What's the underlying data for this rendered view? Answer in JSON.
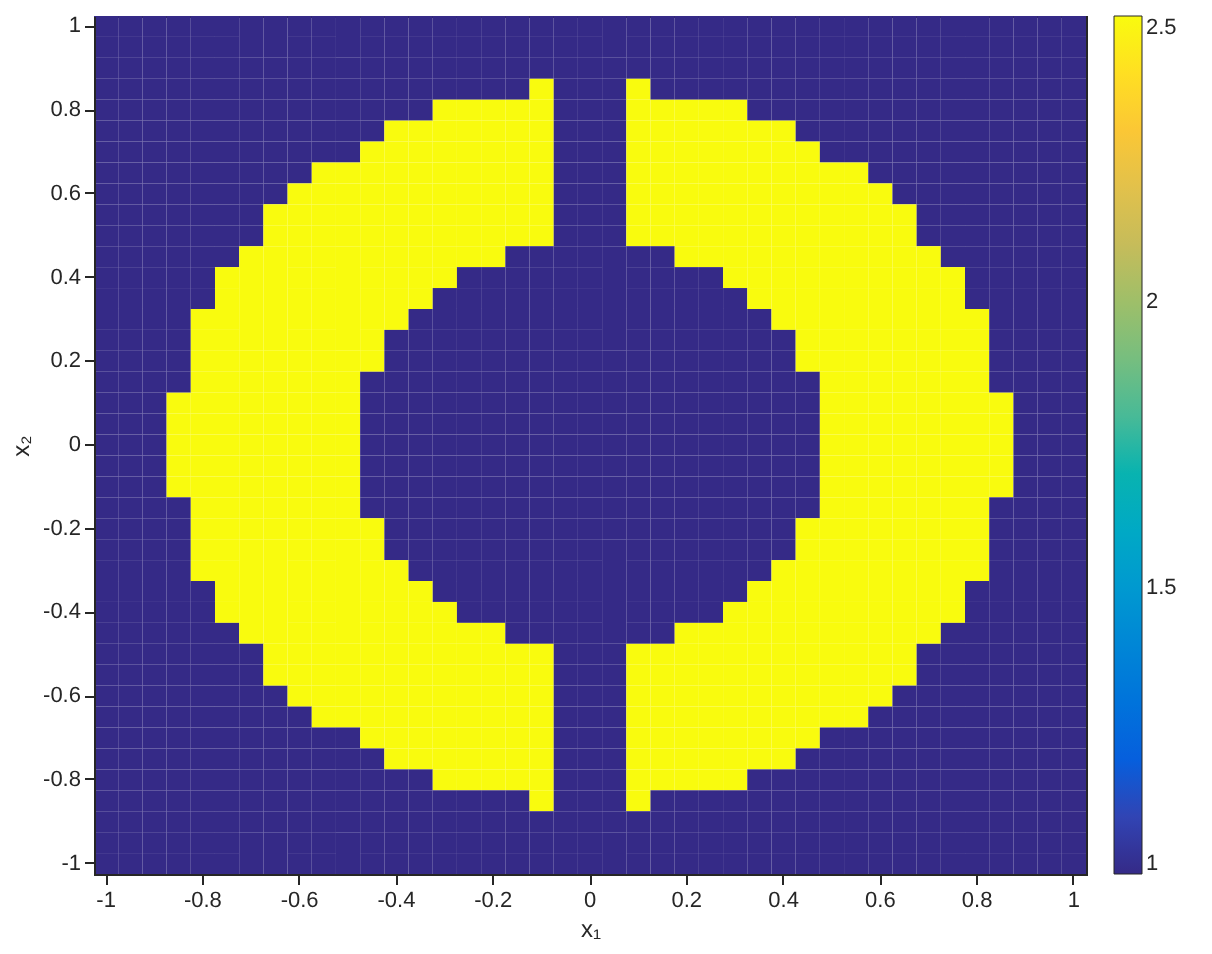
{
  "chart_data": {
    "type": "heatmap",
    "xlabel": "x₁",
    "ylabel": "x₂",
    "categories": [
      "-1",
      null,
      null,
      null,
      "-0.8",
      null,
      null,
      null,
      "-0.6",
      null,
      null,
      null,
      "-0.4",
      null,
      null,
      null,
      "-0.2",
      null,
      null,
      null,
      "0",
      null,
      null,
      null,
      "0.2",
      null,
      null,
      null,
      "0.4",
      null,
      null,
      null,
      "0.6",
      null,
      null,
      null,
      "0.8",
      null,
      null,
      null,
      "1"
    ],
    "y_categories": [
      "1",
      null,
      null,
      null,
      "0.8",
      null,
      null,
      null,
      "0.6",
      null,
      null,
      null,
      "0.4",
      null,
      null,
      null,
      "0.2",
      null,
      null,
      null,
      "0",
      null,
      null,
      null,
      "-0.2",
      null,
      null,
      null,
      "-0.4",
      null,
      null,
      null,
      "-0.6",
      null,
      null,
      null,
      "-0.8",
      null,
      null,
      null,
      "-1"
    ],
    "cells": [
      [
        1,
        1,
        1,
        1,
        1,
        1,
        1,
        1,
        1,
        1,
        1,
        1,
        1,
        1,
        1,
        1,
        1,
        1,
        1,
        1,
        1,
        1,
        1,
        1,
        1,
        1,
        1,
        1,
        1,
        1,
        1,
        1,
        1,
        1,
        1,
        1,
        1,
        1,
        1,
        1,
        1
      ],
      [
        1,
        1,
        1,
        1,
        1,
        1,
        1,
        1,
        1,
        1,
        1,
        1,
        1,
        1,
        1,
        1,
        1,
        1,
        1,
        1,
        1,
        1,
        1,
        1,
        1,
        1,
        1,
        1,
        1,
        1,
        1,
        1,
        1,
        1,
        1,
        1,
        1,
        1,
        1,
        1,
        1
      ],
      [
        1,
        1,
        1,
        1,
        1,
        1,
        1,
        1,
        1,
        1,
        1,
        1,
        1,
        1,
        1,
        1,
        1,
        1,
        1,
        1,
        1,
        1,
        1,
        1,
        1,
        1,
        1,
        1,
        1,
        1,
        1,
        1,
        1,
        1,
        1,
        1,
        1,
        1,
        1,
        1,
        1
      ],
      [
        1,
        1,
        1,
        1,
        1,
        1,
        1,
        1,
        1,
        1,
        1,
        1,
        1,
        1,
        1,
        1,
        1,
        1,
        2.5,
        1,
        1,
        1,
        2.5,
        1,
        1,
        1,
        1,
        1,
        1,
        1,
        1,
        1,
        1,
        1,
        1,
        1,
        1,
        1,
        1,
        1,
        1
      ],
      [
        1,
        1,
        1,
        1,
        1,
        1,
        1,
        1,
        1,
        1,
        1,
        1,
        1,
        1,
        2.5,
        2.5,
        2.5,
        2.5,
        2.5,
        1,
        1,
        1,
        2.5,
        2.5,
        2.5,
        2.5,
        2.5,
        1,
        1,
        1,
        1,
        1,
        1,
        1,
        1,
        1,
        1,
        1,
        1,
        1,
        1
      ],
      [
        1,
        1,
        1,
        1,
        1,
        1,
        1,
        1,
        1,
        1,
        1,
        1,
        2.5,
        2.5,
        2.5,
        2.5,
        2.5,
        2.5,
        2.5,
        1,
        1,
        1,
        2.5,
        2.5,
        2.5,
        2.5,
        2.5,
        2.5,
        2.5,
        1,
        1,
        1,
        1,
        1,
        1,
        1,
        1,
        1,
        1,
        1,
        1
      ],
      [
        1,
        1,
        1,
        1,
        1,
        1,
        1,
        1,
        1,
        1,
        1,
        2.5,
        2.5,
        2.5,
        2.5,
        2.5,
        2.5,
        2.5,
        2.5,
        1,
        1,
        1,
        2.5,
        2.5,
        2.5,
        2.5,
        2.5,
        2.5,
        2.5,
        2.5,
        1,
        1,
        1,
        1,
        1,
        1,
        1,
        1,
        1,
        1,
        1
      ],
      [
        1,
        1,
        1,
        1,
        1,
        1,
        1,
        1,
        1,
        2.5,
        2.5,
        2.5,
        2.5,
        2.5,
        2.5,
        2.5,
        2.5,
        2.5,
        2.5,
        1,
        1,
        1,
        2.5,
        2.5,
        2.5,
        2.5,
        2.5,
        2.5,
        2.5,
        2.5,
        2.5,
        2.5,
        1,
        1,
        1,
        1,
        1,
        1,
        1,
        1,
        1
      ],
      [
        1,
        1,
        1,
        1,
        1,
        1,
        1,
        1,
        2.5,
        2.5,
        2.5,
        2.5,
        2.5,
        2.5,
        2.5,
        2.5,
        2.5,
        2.5,
        2.5,
        1,
        1,
        1,
        2.5,
        2.5,
        2.5,
        2.5,
        2.5,
        2.5,
        2.5,
        2.5,
        2.5,
        2.5,
        2.5,
        1,
        1,
        1,
        1,
        1,
        1,
        1,
        1
      ],
      [
        1,
        1,
        1,
        1,
        1,
        1,
        1,
        2.5,
        2.5,
        2.5,
        2.5,
        2.5,
        2.5,
        2.5,
        2.5,
        2.5,
        2.5,
        2.5,
        2.5,
        1,
        1,
        1,
        2.5,
        2.5,
        2.5,
        2.5,
        2.5,
        2.5,
        2.5,
        2.5,
        2.5,
        2.5,
        2.5,
        2.5,
        1,
        1,
        1,
        1,
        1,
        1,
        1
      ],
      [
        1,
        1,
        1,
        1,
        1,
        1,
        1,
        2.5,
        2.5,
        2.5,
        2.5,
        2.5,
        2.5,
        2.5,
        2.5,
        2.5,
        2.5,
        2.5,
        2.5,
        1,
        1,
        1,
        2.5,
        2.5,
        2.5,
        2.5,
        2.5,
        2.5,
        2.5,
        2.5,
        2.5,
        2.5,
        2.5,
        2.5,
        1,
        1,
        1,
        1,
        1,
        1,
        1
      ],
      [
        1,
        1,
        1,
        1,
        1,
        1,
        2.5,
        2.5,
        2.5,
        2.5,
        2.5,
        2.5,
        2.5,
        2.5,
        2.5,
        2.5,
        2.5,
        1,
        1,
        1,
        1,
        1,
        1,
        1,
        2.5,
        2.5,
        2.5,
        2.5,
        2.5,
        2.5,
        2.5,
        2.5,
        2.5,
        2.5,
        2.5,
        1,
        1,
        1,
        1,
        1,
        1
      ],
      [
        1,
        1,
        1,
        1,
        1,
        2.5,
        2.5,
        2.5,
        2.5,
        2.5,
        2.5,
        2.5,
        2.5,
        2.5,
        2.5,
        1,
        1,
        1,
        1,
        1,
        1,
        1,
        1,
        1,
        1,
        1,
        2.5,
        2.5,
        2.5,
        2.5,
        2.5,
        2.5,
        2.5,
        2.5,
        2.5,
        2.5,
        1,
        1,
        1,
        1,
        1
      ],
      [
        1,
        1,
        1,
        1,
        1,
        2.5,
        2.5,
        2.5,
        2.5,
        2.5,
        2.5,
        2.5,
        2.5,
        2.5,
        1,
        1,
        1,
        1,
        1,
        1,
        1,
        1,
        1,
        1,
        1,
        1,
        1,
        2.5,
        2.5,
        2.5,
        2.5,
        2.5,
        2.5,
        2.5,
        2.5,
        2.5,
        1,
        1,
        1,
        1,
        1
      ],
      [
        1,
        1,
        1,
        1,
        2.5,
        2.5,
        2.5,
        2.5,
        2.5,
        2.5,
        2.5,
        2.5,
        2.5,
        1,
        1,
        1,
        1,
        1,
        1,
        1,
        1,
        1,
        1,
        1,
        1,
        1,
        1,
        1,
        2.5,
        2.5,
        2.5,
        2.5,
        2.5,
        2.5,
        2.5,
        2.5,
        2.5,
        1,
        1,
        1,
        1
      ],
      [
        1,
        1,
        1,
        1,
        2.5,
        2.5,
        2.5,
        2.5,
        2.5,
        2.5,
        2.5,
        2.5,
        1,
        1,
        1,
        1,
        1,
        1,
        1,
        1,
        1,
        1,
        1,
        1,
        1,
        1,
        1,
        1,
        1,
        2.5,
        2.5,
        2.5,
        2.5,
        2.5,
        2.5,
        2.5,
        2.5,
        1,
        1,
        1,
        1
      ],
      [
        1,
        1,
        1,
        1,
        2.5,
        2.5,
        2.5,
        2.5,
        2.5,
        2.5,
        2.5,
        2.5,
        1,
        1,
        1,
        1,
        1,
        1,
        1,
        1,
        1,
        1,
        1,
        1,
        1,
        1,
        1,
        1,
        1,
        2.5,
        2.5,
        2.5,
        2.5,
        2.5,
        2.5,
        2.5,
        2.5,
        1,
        1,
        1,
        1
      ],
      [
        1,
        1,
        1,
        1,
        2.5,
        2.5,
        2.5,
        2.5,
        2.5,
        2.5,
        2.5,
        1,
        1,
        1,
        1,
        1,
        1,
        1,
        1,
        1,
        1,
        1,
        1,
        1,
        1,
        1,
        1,
        1,
        1,
        1,
        2.5,
        2.5,
        2.5,
        2.5,
        2.5,
        2.5,
        2.5,
        1,
        1,
        1,
        1
      ],
      [
        1,
        1,
        1,
        2.5,
        2.5,
        2.5,
        2.5,
        2.5,
        2.5,
        2.5,
        2.5,
        1,
        1,
        1,
        1,
        1,
        1,
        1,
        1,
        1,
        1,
        1,
        1,
        1,
        1,
        1,
        1,
        1,
        1,
        1,
        2.5,
        2.5,
        2.5,
        2.5,
        2.5,
        2.5,
        2.5,
        2.5,
        1,
        1,
        1
      ],
      [
        1,
        1,
        1,
        2.5,
        2.5,
        2.5,
        2.5,
        2.5,
        2.5,
        2.5,
        2.5,
        1,
        1,
        1,
        1,
        1,
        1,
        1,
        1,
        1,
        1,
        1,
        1,
        1,
        1,
        1,
        1,
        1,
        1,
        1,
        2.5,
        2.5,
        2.5,
        2.5,
        2.5,
        2.5,
        2.5,
        2.5,
        1,
        1,
        1
      ],
      [
        1,
        1,
        1,
        2.5,
        2.5,
        2.5,
        2.5,
        2.5,
        2.5,
        2.5,
        2.5,
        1,
        1,
        1,
        1,
        1,
        1,
        1,
        1,
        1,
        1,
        1,
        1,
        1,
        1,
        1,
        1,
        1,
        1,
        1,
        2.5,
        2.5,
        2.5,
        2.5,
        2.5,
        2.5,
        2.5,
        2.5,
        1,
        1,
        1
      ],
      [
        1,
        1,
        1,
        2.5,
        2.5,
        2.5,
        2.5,
        2.5,
        2.5,
        2.5,
        2.5,
        1,
        1,
        1,
        1,
        1,
        1,
        1,
        1,
        1,
        1,
        1,
        1,
        1,
        1,
        1,
        1,
        1,
        1,
        1,
        2.5,
        2.5,
        2.5,
        2.5,
        2.5,
        2.5,
        2.5,
        2.5,
        1,
        1,
        1
      ],
      [
        1,
        1,
        1,
        2.5,
        2.5,
        2.5,
        2.5,
        2.5,
        2.5,
        2.5,
        2.5,
        1,
        1,
        1,
        1,
        1,
        1,
        1,
        1,
        1,
        1,
        1,
        1,
        1,
        1,
        1,
        1,
        1,
        1,
        1,
        2.5,
        2.5,
        2.5,
        2.5,
        2.5,
        2.5,
        2.5,
        2.5,
        1,
        1,
        1
      ],
      [
        1,
        1,
        1,
        1,
        2.5,
        2.5,
        2.5,
        2.5,
        2.5,
        2.5,
        2.5,
        1,
        1,
        1,
        1,
        1,
        1,
        1,
        1,
        1,
        1,
        1,
        1,
        1,
        1,
        1,
        1,
        1,
        1,
        1,
        2.5,
        2.5,
        2.5,
        2.5,
        2.5,
        2.5,
        2.5,
        1,
        1,
        1,
        1
      ],
      [
        1,
        1,
        1,
        1,
        2.5,
        2.5,
        2.5,
        2.5,
        2.5,
        2.5,
        2.5,
        2.5,
        1,
        1,
        1,
        1,
        1,
        1,
        1,
        1,
        1,
        1,
        1,
        1,
        1,
        1,
        1,
        1,
        1,
        2.5,
        2.5,
        2.5,
        2.5,
        2.5,
        2.5,
        2.5,
        2.5,
        1,
        1,
        1,
        1
      ],
      [
        1,
        1,
        1,
        1,
        2.5,
        2.5,
        2.5,
        2.5,
        2.5,
        2.5,
        2.5,
        2.5,
        1,
        1,
        1,
        1,
        1,
        1,
        1,
        1,
        1,
        1,
        1,
        1,
        1,
        1,
        1,
        1,
        1,
        2.5,
        2.5,
        2.5,
        2.5,
        2.5,
        2.5,
        2.5,
        2.5,
        1,
        1,
        1,
        1
      ],
      [
        1,
        1,
        1,
        1,
        2.5,
        2.5,
        2.5,
        2.5,
        2.5,
        2.5,
        2.5,
        2.5,
        2.5,
        1,
        1,
        1,
        1,
        1,
        1,
        1,
        1,
        1,
        1,
        1,
        1,
        1,
        1,
        1,
        2.5,
        2.5,
        2.5,
        2.5,
        2.5,
        2.5,
        2.5,
        2.5,
        2.5,
        1,
        1,
        1,
        1
      ],
      [
        1,
        1,
        1,
        1,
        1,
        2.5,
        2.5,
        2.5,
        2.5,
        2.5,
        2.5,
        2.5,
        2.5,
        2.5,
        1,
        1,
        1,
        1,
        1,
        1,
        1,
        1,
        1,
        1,
        1,
        1,
        1,
        2.5,
        2.5,
        2.5,
        2.5,
        2.5,
        2.5,
        2.5,
        2.5,
        2.5,
        1,
        1,
        1,
        1,
        1
      ],
      [
        1,
        1,
        1,
        1,
        1,
        2.5,
        2.5,
        2.5,
        2.5,
        2.5,
        2.5,
        2.5,
        2.5,
        2.5,
        2.5,
        1,
        1,
        1,
        1,
        1,
        1,
        1,
        1,
        1,
        1,
        1,
        2.5,
        2.5,
        2.5,
        2.5,
        2.5,
        2.5,
        2.5,
        2.5,
        2.5,
        2.5,
        1,
        1,
        1,
        1,
        1
      ],
      [
        1,
        1,
        1,
        1,
        1,
        1,
        2.5,
        2.5,
        2.5,
        2.5,
        2.5,
        2.5,
        2.5,
        2.5,
        2.5,
        2.5,
        2.5,
        1,
        1,
        1,
        1,
        1,
        1,
        1,
        2.5,
        2.5,
        2.5,
        2.5,
        2.5,
        2.5,
        2.5,
        2.5,
        2.5,
        2.5,
        2.5,
        1,
        1,
        1,
        1,
        1,
        1
      ],
      [
        1,
        1,
        1,
        1,
        1,
        1,
        1,
        2.5,
        2.5,
        2.5,
        2.5,
        2.5,
        2.5,
        2.5,
        2.5,
        2.5,
        2.5,
        2.5,
        2.5,
        1,
        1,
        1,
        2.5,
        2.5,
        2.5,
        2.5,
        2.5,
        2.5,
        2.5,
        2.5,
        2.5,
        2.5,
        2.5,
        2.5,
        1,
        1,
        1,
        1,
        1,
        1,
        1
      ],
      [
        1,
        1,
        1,
        1,
        1,
        1,
        1,
        2.5,
        2.5,
        2.5,
        2.5,
        2.5,
        2.5,
        2.5,
        2.5,
        2.5,
        2.5,
        2.5,
        2.5,
        1,
        1,
        1,
        2.5,
        2.5,
        2.5,
        2.5,
        2.5,
        2.5,
        2.5,
        2.5,
        2.5,
        2.5,
        2.5,
        2.5,
        1,
        1,
        1,
        1,
        1,
        1,
        1
      ],
      [
        1,
        1,
        1,
        1,
        1,
        1,
        1,
        1,
        2.5,
        2.5,
        2.5,
        2.5,
        2.5,
        2.5,
        2.5,
        2.5,
        2.5,
        2.5,
        2.5,
        1,
        1,
        1,
        2.5,
        2.5,
        2.5,
        2.5,
        2.5,
        2.5,
        2.5,
        2.5,
        2.5,
        2.5,
        2.5,
        1,
        1,
        1,
        1,
        1,
        1,
        1,
        1
      ],
      [
        1,
        1,
        1,
        1,
        1,
        1,
        1,
        1,
        1,
        2.5,
        2.5,
        2.5,
        2.5,
        2.5,
        2.5,
        2.5,
        2.5,
        2.5,
        2.5,
        1,
        1,
        1,
        2.5,
        2.5,
        2.5,
        2.5,
        2.5,
        2.5,
        2.5,
        2.5,
        2.5,
        2.5,
        1,
        1,
        1,
        1,
        1,
        1,
        1,
        1,
        1
      ],
      [
        1,
        1,
        1,
        1,
        1,
        1,
        1,
        1,
        1,
        1,
        1,
        2.5,
        2.5,
        2.5,
        2.5,
        2.5,
        2.5,
        2.5,
        2.5,
        1,
        1,
        1,
        2.5,
        2.5,
        2.5,
        2.5,
        2.5,
        2.5,
        2.5,
        2.5,
        1,
        1,
        1,
        1,
        1,
        1,
        1,
        1,
        1,
        1,
        1
      ],
      [
        1,
        1,
        1,
        1,
        1,
        1,
        1,
        1,
        1,
        1,
        1,
        1,
        2.5,
        2.5,
        2.5,
        2.5,
        2.5,
        2.5,
        2.5,
        1,
        1,
        1,
        2.5,
        2.5,
        2.5,
        2.5,
        2.5,
        2.5,
        2.5,
        1,
        1,
        1,
        1,
        1,
        1,
        1,
        1,
        1,
        1,
        1,
        1
      ],
      [
        1,
        1,
        1,
        1,
        1,
        1,
        1,
        1,
        1,
        1,
        1,
        1,
        1,
        1,
        2.5,
        2.5,
        2.5,
        2.5,
        2.5,
        1,
        1,
        1,
        2.5,
        2.5,
        2.5,
        2.5,
        2.5,
        1,
        1,
        1,
        1,
        1,
        1,
        1,
        1,
        1,
        1,
        1,
        1,
        1,
        1
      ],
      [
        1,
        1,
        1,
        1,
        1,
        1,
        1,
        1,
        1,
        1,
        1,
        1,
        1,
        1,
        1,
        1,
        1,
        1,
        2.5,
        1,
        1,
        1,
        2.5,
        1,
        1,
        1,
        1,
        1,
        1,
        1,
        1,
        1,
        1,
        1,
        1,
        1,
        1,
        1,
        1,
        1,
        1
      ],
      [
        1,
        1,
        1,
        1,
        1,
        1,
        1,
        1,
        1,
        1,
        1,
        1,
        1,
        1,
        1,
        1,
        1,
        1,
        1,
        1,
        1,
        1,
        1,
        1,
        1,
        1,
        1,
        1,
        1,
        1,
        1,
        1,
        1,
        1,
        1,
        1,
        1,
        1,
        1,
        1,
        1
      ],
      [
        1,
        1,
        1,
        1,
        1,
        1,
        1,
        1,
        1,
        1,
        1,
        1,
        1,
        1,
        1,
        1,
        1,
        1,
        1,
        1,
        1,
        1,
        1,
        1,
        1,
        1,
        1,
        1,
        1,
        1,
        1,
        1,
        1,
        1,
        1,
        1,
        1,
        1,
        1,
        1,
        1
      ],
      [
        1,
        1,
        1,
        1,
        1,
        1,
        1,
        1,
        1,
        1,
        1,
        1,
        1,
        1,
        1,
        1,
        1,
        1,
        1,
        1,
        1,
        1,
        1,
        1,
        1,
        1,
        1,
        1,
        1,
        1,
        1,
        1,
        1,
        1,
        1,
        1,
        1,
        1,
        1,
        1,
        1
      ]
    ],
    "clim": [
      1,
      2.5
    ],
    "cticks": [
      1,
      1.5,
      2,
      2.5
    ]
  }
}
